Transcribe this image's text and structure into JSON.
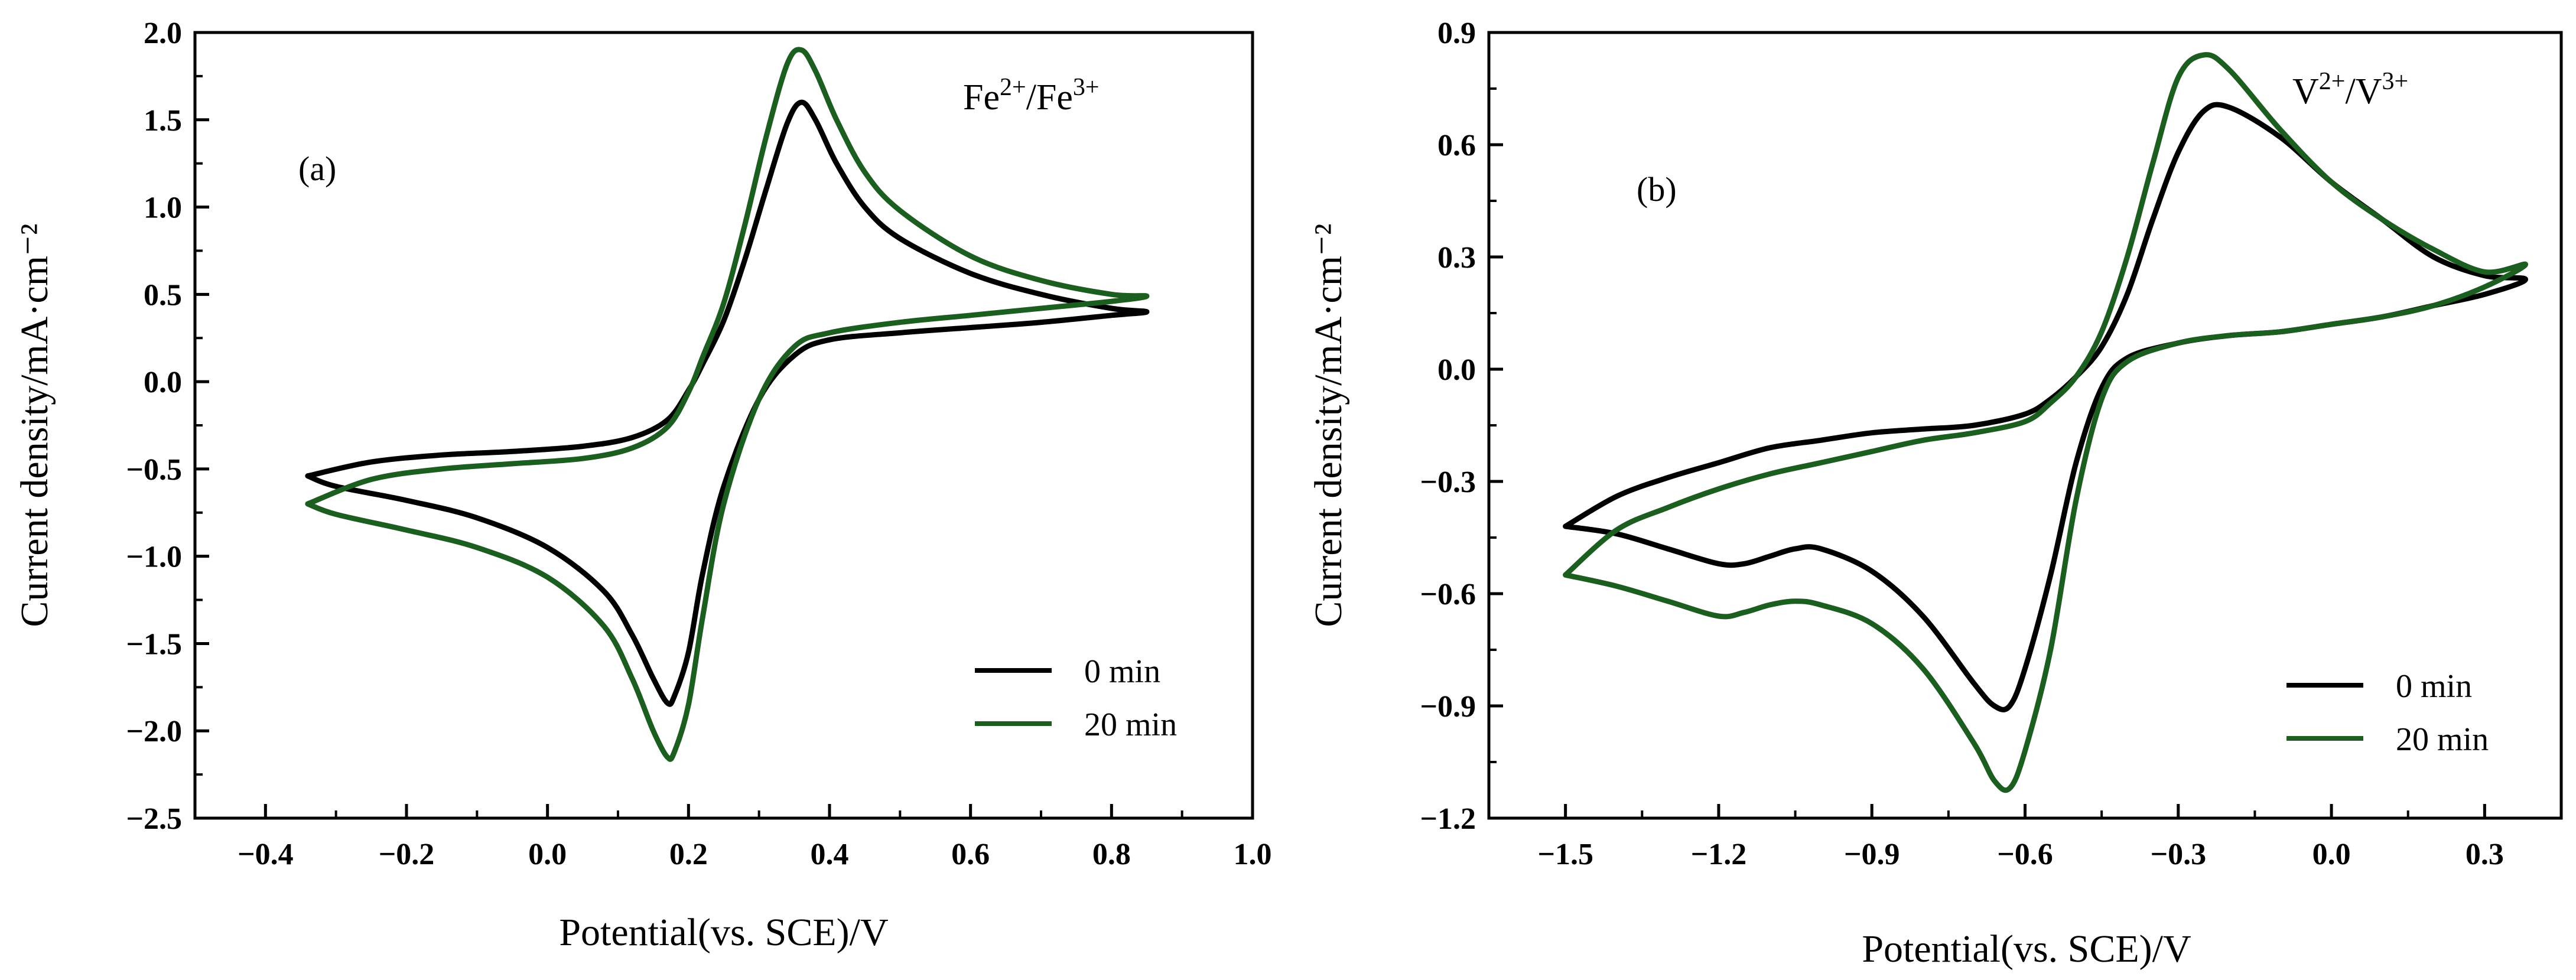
{
  "colors": {
    "c0": "#000000",
    "c20": "#1b5e20"
  },
  "chart_data": [
    {
      "type": "line",
      "panel": "(a)",
      "xlabel": "Potential(vs. SCE)/V",
      "ylabel": "Current density/mA·cm⁻²",
      "xlim": [
        -0.5,
        1.0
      ],
      "ylim": [
        -2.5,
        2.0
      ],
      "xticks": [
        "−0.4",
        "−0.2",
        "0.0",
        "0.2",
        "0.4",
        "0.6",
        "0.8",
        "1.0"
      ],
      "xtick_values": [
        -0.4,
        -0.2,
        0.0,
        0.2,
        0.4,
        0.6,
        0.8,
        1.0
      ],
      "yticks": [
        "2.0",
        "1.5",
        "1.0",
        "0.5",
        "0.0",
        "−0.5",
        "−1.0",
        "−1.5",
        "−2.0",
        "−2.5"
      ],
      "ytick_values": [
        2.0,
        1.5,
        1.0,
        0.5,
        0.0,
        -0.5,
        -1.0,
        -1.5,
        -2.0,
        -2.5
      ],
      "annotation": {
        "base1": "Fe",
        "sup1": "2+",
        "sep": "/",
        "base2": "Fe",
        "sup2": "3+"
      },
      "legend": [
        "0 min",
        "20 min"
      ],
      "series": [
        {
          "name": "0 min",
          "color": "#000000",
          "x": [
            -0.34,
            -0.25,
            -0.15,
            -0.05,
            0.05,
            0.12,
            0.17,
            0.2,
            0.22,
            0.25,
            0.28,
            0.31,
            0.34,
            0.36,
            0.38,
            0.41,
            0.45,
            0.5,
            0.6,
            0.7,
            0.8,
            0.85,
            0.8,
            0.7,
            0.6,
            0.5,
            0.4,
            0.35,
            0.3,
            0.25,
            0.22,
            0.2,
            0.18,
            0.17,
            0.15,
            0.12,
            0.08,
            0.0,
            -0.1,
            -0.2,
            -0.3,
            -0.34
          ],
          "y": [
            -0.54,
            -0.46,
            -0.42,
            -0.4,
            -0.37,
            -0.32,
            -0.22,
            -0.05,
            0.1,
            0.35,
            0.7,
            1.1,
            1.48,
            1.6,
            1.5,
            1.25,
            1.0,
            0.82,
            0.62,
            0.5,
            0.42,
            0.4,
            0.38,
            0.34,
            0.31,
            0.28,
            0.24,
            0.15,
            -0.1,
            -0.6,
            -1.1,
            -1.55,
            -1.8,
            -1.84,
            -1.7,
            -1.45,
            -1.2,
            -0.95,
            -0.78,
            -0.68,
            -0.6,
            -0.54
          ]
        },
        {
          "name": "20 min",
          "color": "#1b5e20",
          "x": [
            -0.34,
            -0.25,
            -0.15,
            -0.05,
            0.05,
            0.12,
            0.17,
            0.2,
            0.22,
            0.25,
            0.28,
            0.31,
            0.34,
            0.36,
            0.38,
            0.41,
            0.45,
            0.5,
            0.6,
            0.7,
            0.8,
            0.85,
            0.8,
            0.7,
            0.6,
            0.5,
            0.4,
            0.35,
            0.3,
            0.25,
            0.22,
            0.2,
            0.18,
            0.17,
            0.15,
            0.12,
            0.08,
            0.0,
            -0.1,
            -0.2,
            -0.3,
            -0.34
          ],
          "y": [
            -0.7,
            -0.56,
            -0.5,
            -0.47,
            -0.44,
            -0.38,
            -0.26,
            -0.06,
            0.14,
            0.45,
            0.9,
            1.4,
            1.82,
            1.9,
            1.78,
            1.5,
            1.2,
            0.98,
            0.72,
            0.58,
            0.5,
            0.49,
            0.46,
            0.42,
            0.38,
            0.34,
            0.28,
            0.2,
            -0.1,
            -0.7,
            -1.35,
            -1.85,
            -2.12,
            -2.15,
            -2.0,
            -1.7,
            -1.4,
            -1.12,
            -0.95,
            -0.85,
            -0.76,
            -0.7
          ]
        }
      ]
    },
    {
      "type": "line",
      "panel": "(b)",
      "xlabel": "Potential(vs. SCE)/V",
      "ylabel": "Current density/mA·cm⁻²",
      "xlim": [
        -1.65,
        0.45
      ],
      "ylim": [
        -1.2,
        0.9
      ],
      "xticks": [
        "−1.5",
        "−1.2",
        "−0.9",
        "−0.6",
        "−0.3",
        "0.0",
        "0.3"
      ],
      "xtick_values": [
        -1.5,
        -1.2,
        -0.9,
        -0.6,
        -0.3,
        0.0,
        0.3
      ],
      "yticks": [
        "0.9",
        "0.6",
        "0.3",
        "0.0",
        "−0.3",
        "−0.6",
        "−0.9",
        "−1.2"
      ],
      "ytick_values": [
        0.9,
        0.6,
        0.3,
        0.0,
        -0.3,
        -0.6,
        -0.9,
        -1.2
      ],
      "annotation": {
        "base1": "V",
        "sup1": "2+",
        "sep": "/",
        "base2": "V",
        "sup2": "3+"
      },
      "legend": [
        "0 min",
        "20 min"
      ],
      "series": [
        {
          "name": "0 min",
          "color": "#000000",
          "x": [
            -1.5,
            -1.4,
            -1.3,
            -1.2,
            -1.1,
            -1.0,
            -0.9,
            -0.8,
            -0.7,
            -0.6,
            -0.55,
            -0.5,
            -0.45,
            -0.4,
            -0.35,
            -0.3,
            -0.25,
            -0.2,
            -0.1,
            0.0,
            0.1,
            0.2,
            0.3,
            0.38,
            0.3,
            0.2,
            0.1,
            0.0,
            -0.1,
            -0.2,
            -0.3,
            -0.4,
            -0.45,
            -0.5,
            -0.55,
            -0.6,
            -0.63,
            -0.66,
            -0.7,
            -0.8,
            -0.9,
            -1.0,
            -1.05,
            -1.1,
            -1.15,
            -1.2,
            -1.3,
            -1.4,
            -1.5
          ],
          "y": [
            -0.42,
            -0.34,
            -0.29,
            -0.25,
            -0.21,
            -0.19,
            -0.17,
            -0.16,
            -0.15,
            -0.12,
            -0.08,
            -0.02,
            0.06,
            0.2,
            0.4,
            0.58,
            0.69,
            0.7,
            0.62,
            0.5,
            0.4,
            0.3,
            0.25,
            0.24,
            0.2,
            0.17,
            0.14,
            0.12,
            0.1,
            0.09,
            0.07,
            0.03,
            -0.05,
            -0.25,
            -0.55,
            -0.8,
            -0.9,
            -0.9,
            -0.84,
            -0.66,
            -0.54,
            -0.48,
            -0.48,
            -0.5,
            -0.52,
            -0.52,
            -0.48,
            -0.44,
            -0.42
          ]
        },
        {
          "name": "20 min",
          "color": "#1b5e20",
          "x": [
            -1.5,
            -1.4,
            -1.3,
            -1.2,
            -1.1,
            -1.0,
            -0.9,
            -0.8,
            -0.7,
            -0.6,
            -0.55,
            -0.5,
            -0.45,
            -0.4,
            -0.35,
            -0.3,
            -0.25,
            -0.2,
            -0.1,
            0.0,
            0.1,
            0.2,
            0.3,
            0.38,
            0.3,
            0.2,
            0.1,
            0.0,
            -0.1,
            -0.2,
            -0.3,
            -0.4,
            -0.45,
            -0.5,
            -0.55,
            -0.6,
            -0.63,
            -0.66,
            -0.7,
            -0.8,
            -0.9,
            -1.0,
            -1.05,
            -1.1,
            -1.15,
            -1.2,
            -1.3,
            -1.4,
            -1.5
          ],
          "y": [
            -0.55,
            -0.43,
            -0.37,
            -0.32,
            -0.28,
            -0.25,
            -0.22,
            -0.19,
            -0.17,
            -0.14,
            -0.09,
            -0.02,
            0.1,
            0.3,
            0.55,
            0.78,
            0.84,
            0.8,
            0.64,
            0.5,
            0.4,
            0.32,
            0.26,
            0.28,
            0.22,
            0.17,
            0.14,
            0.12,
            0.1,
            0.09,
            0.07,
            0.02,
            -0.08,
            -0.35,
            -0.75,
            -1.02,
            -1.12,
            -1.1,
            -1.0,
            -0.8,
            -0.68,
            -0.63,
            -0.62,
            -0.63,
            -0.65,
            -0.66,
            -0.62,
            -0.58,
            -0.55
          ]
        }
      ]
    }
  ]
}
